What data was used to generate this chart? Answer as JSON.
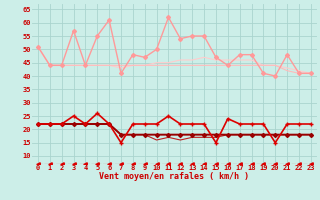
{
  "bg_color": "#cceee8",
  "grid_color": "#aad4ce",
  "x_labels": [
    "0",
    "1",
    "2",
    "3",
    "4",
    "5",
    "6",
    "7",
    "8",
    "9",
    "10",
    "11",
    "12",
    "13",
    "14",
    "15",
    "16",
    "17",
    "18",
    "19",
    "20",
    "21",
    "22",
    "23"
  ],
  "xlabel": "Vent moyen/en rafales ( km/h )",
  "yticks": [
    10,
    15,
    20,
    25,
    30,
    35,
    40,
    45,
    50,
    55,
    60,
    65
  ],
  "ylim": [
    7,
    67
  ],
  "xlim": [
    -0.5,
    23.5
  ],
  "line_spiky_pink": {
    "y": [
      51,
      44,
      44,
      57,
      44,
      55,
      61,
      41,
      48,
      47,
      50,
      62,
      54,
      55,
      55,
      47,
      44,
      48,
      48,
      41,
      40,
      48,
      41,
      41
    ],
    "color": "#ff9999",
    "lw": 1.0,
    "marker": "D",
    "ms": 2.0
  },
  "line_smooth_pink1": {
    "y": [
      51,
      44,
      44,
      44,
      44,
      44,
      44,
      44,
      44,
      44,
      44,
      44,
      44,
      44,
      44,
      44,
      44,
      44,
      44,
      44,
      44,
      42,
      41,
      41
    ],
    "color": "#ffbbbb",
    "lw": 0.8,
    "marker": null,
    "ms": 0
  },
  "line_smooth_pink2": {
    "y": [
      51,
      44,
      44,
      44,
      44,
      44,
      44,
      43,
      44,
      44,
      45,
      45,
      46,
      46,
      47,
      46,
      46,
      46,
      46,
      44,
      44,
      43,
      42,
      41
    ],
    "color": "#ffcccc",
    "lw": 0.8,
    "marker": null,
    "ms": 0
  },
  "line_spiky_red": {
    "y": [
      22,
      22,
      22,
      25,
      22,
      26,
      22,
      15,
      22,
      22,
      22,
      25,
      22,
      22,
      22,
      15,
      24,
      22,
      22,
      22,
      15,
      22,
      22,
      22
    ],
    "color": "#dd0000",
    "lw": 1.2,
    "marker": "+",
    "ms": 3.5
  },
  "line_smooth_red1": {
    "y": [
      22,
      22,
      22,
      22,
      22,
      22,
      22,
      18,
      18,
      18,
      18,
      18,
      18,
      18,
      18,
      18,
      18,
      18,
      18,
      18,
      18,
      18,
      18,
      18
    ],
    "color": "#990000",
    "lw": 1.4,
    "marker": "D",
    "ms": 2.0
  },
  "line_smooth_red2": {
    "y": [
      22,
      22,
      22,
      22,
      22,
      22,
      22,
      18,
      18,
      18,
      16,
      17,
      16,
      17,
      17,
      17,
      18,
      18,
      18,
      18,
      18,
      18,
      18,
      18
    ],
    "color": "#bb2222",
    "lw": 0.8,
    "marker": null,
    "ms": 0
  },
  "line_dashed": {
    "y": [
      7,
      7,
      7,
      7,
      7,
      7,
      7,
      7,
      7,
      7,
      7,
      7,
      7,
      7,
      7,
      7,
      7,
      7,
      7,
      7,
      7,
      7,
      7,
      7
    ],
    "color": "#dd0000",
    "lw": 0.8,
    "marker": "<",
    "ms": 2.5,
    "linestyle": "--"
  }
}
